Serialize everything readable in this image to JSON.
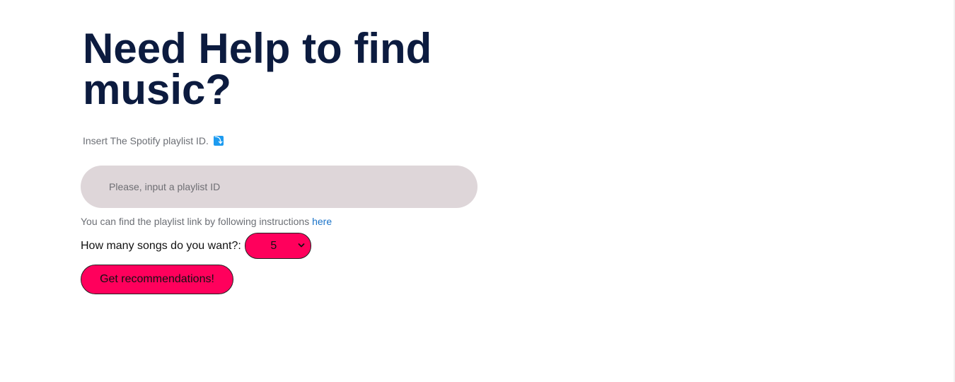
{
  "header": {
    "title": "Need Help to find music?"
  },
  "form": {
    "subtitle": "Insert The Spotify playlist ID.",
    "subtitle_icon": "down-arrow-icon",
    "subtitle_icon_glyph": "⤵",
    "playlist_input": {
      "value": "",
      "placeholder": "Please, input a playlist ID"
    },
    "help_text": "You can find the playlist link by following instructions ",
    "help_link_label": "here",
    "songs_label": "How many songs do you want?:",
    "songs_selected": "5",
    "submit_label": "Get recommendations!"
  },
  "colors": {
    "title": "#0c1b3f",
    "accent": "#ff005c",
    "input_bg": "#ded6d9",
    "link": "#1a73c8",
    "icon_bg": "#1d9bf0"
  }
}
